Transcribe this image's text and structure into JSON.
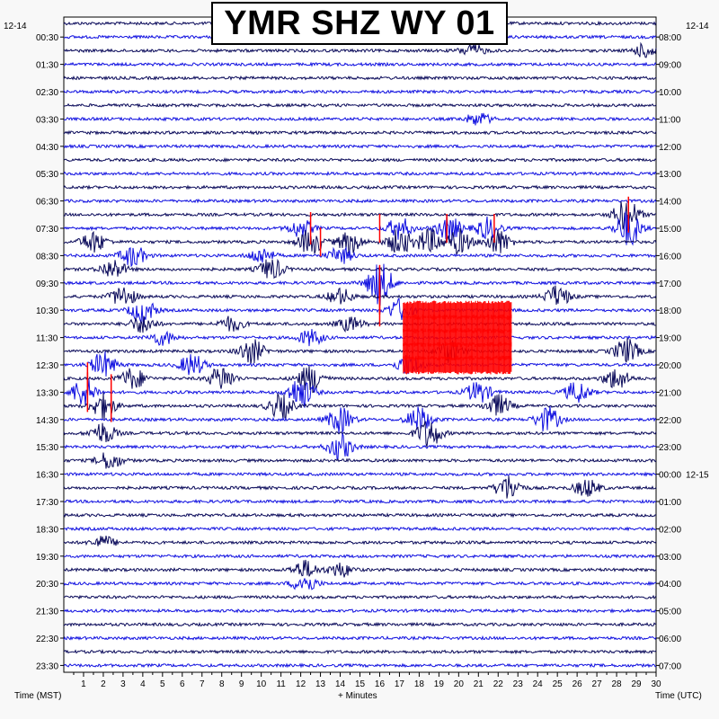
{
  "title": "YMR SHZ WY 01",
  "date_left": "12-14",
  "date_right": "12-14",
  "date_rollover": "12-15",
  "xlabel": "+ Minutes",
  "left_axis_label": "Time (MST)",
  "right_axis_label": "Time (UTC)",
  "colors": {
    "trace_a": "#0a0a5a",
    "trace_b": "#1010e0",
    "clipped": "#ff0000",
    "background": "#f8f8f8"
  },
  "chart_data": {
    "type": "line",
    "description_type": "helicorder",
    "x_ticks": [
      1,
      2,
      3,
      4,
      5,
      6,
      7,
      8,
      9,
      10,
      11,
      12,
      13,
      14,
      15,
      16,
      17,
      18,
      19,
      20,
      21,
      22,
      23,
      24,
      25,
      26,
      27,
      28,
      29,
      30
    ],
    "xlim": [
      0,
      30
    ],
    "traces_per_hour": 2,
    "left_ticks": [
      "00:30",
      "01:30",
      "02:30",
      "03:30",
      "04:30",
      "05:30",
      "06:30",
      "07:30",
      "08:30",
      "09:30",
      "10:30",
      "11:30",
      "12:30",
      "13:30",
      "14:30",
      "15:30",
      "16:30",
      "17:30",
      "18:30",
      "19:30",
      "20:30",
      "21:30",
      "22:30",
      "23:30"
    ],
    "right_ticks": [
      "08:00",
      "09:00",
      "10:00",
      "11:00",
      "12:00",
      "13:00",
      "14:00",
      "15:00",
      "16:00",
      "17:00",
      "18:00",
      "19:00",
      "20:00",
      "21:00",
      "22:00",
      "23:00",
      "00:00",
      "01:00",
      "02:00",
      "03:00",
      "04:00",
      "05:00",
      "06:00",
      "07:00"
    ],
    "events": [
      {
        "row": 2,
        "minute": 20.7,
        "amp": 7
      },
      {
        "row": 2,
        "minute": 29.5,
        "amp": 8
      },
      {
        "row": 7,
        "minute": 21,
        "amp": 7
      },
      {
        "row": 14,
        "minute": 28.5,
        "amp": 18
      },
      {
        "row": 15,
        "minute": 12,
        "amp": 10
      },
      {
        "row": 15,
        "minute": 17,
        "amp": 12
      },
      {
        "row": 15,
        "minute": 19.5,
        "amp": 14
      },
      {
        "row": 15,
        "minute": 21.5,
        "amp": 12
      },
      {
        "row": 15,
        "minute": 28.6,
        "amp": 20
      },
      {
        "row": 16,
        "minute": 1.5,
        "amp": 12
      },
      {
        "row": 16,
        "minute": 12.5,
        "amp": 14
      },
      {
        "row": 16,
        "minute": 14.5,
        "amp": 12
      },
      {
        "row": 16,
        "minute": 17,
        "amp": 14
      },
      {
        "row": 16,
        "minute": 18.5,
        "amp": 14
      },
      {
        "row": 16,
        "minute": 20,
        "amp": 14
      },
      {
        "row": 16,
        "minute": 22,
        "amp": 14
      },
      {
        "row": 17,
        "minute": 3.5,
        "amp": 12
      },
      {
        "row": 17,
        "minute": 10,
        "amp": 9
      },
      {
        "row": 17,
        "minute": 14,
        "amp": 9
      },
      {
        "row": 18,
        "minute": 2.5,
        "amp": 11
      },
      {
        "row": 18,
        "minute": 10.5,
        "amp": 12
      },
      {
        "row": 19,
        "minute": 16,
        "amp": 24
      },
      {
        "row": 20,
        "minute": 3,
        "amp": 12
      },
      {
        "row": 20,
        "minute": 14,
        "amp": 9
      },
      {
        "row": 20,
        "minute": 25,
        "amp": 12
      },
      {
        "row": 21,
        "minute": 4,
        "amp": 14
      },
      {
        "row": 21,
        "minute": 17,
        "amp": 12
      },
      {
        "row": 22,
        "minute": 4,
        "amp": 10
      },
      {
        "row": 22,
        "minute": 8.5,
        "amp": 8
      },
      {
        "row": 22,
        "minute": 14.5,
        "amp": 8
      },
      {
        "row": 23,
        "minute": 5,
        "amp": 8
      },
      {
        "row": 23,
        "minute": 12.5,
        "amp": 9
      },
      {
        "row": 24,
        "minute": 9.5,
        "amp": 14
      },
      {
        "row": 24,
        "minute": 19.5,
        "amp": 12
      },
      {
        "row": 24,
        "minute": 28.5,
        "amp": 14
      },
      {
        "row": 25,
        "minute": 2,
        "amp": 14
      },
      {
        "row": 25,
        "minute": 6.5,
        "amp": 12
      },
      {
        "row": 25,
        "minute": 17.5,
        "amp": 12
      },
      {
        "row": 26,
        "minute": 3.5,
        "amp": 12
      },
      {
        "row": 26,
        "minute": 8,
        "amp": 14
      },
      {
        "row": 26,
        "minute": 12.5,
        "amp": 16
      },
      {
        "row": 26,
        "minute": 28,
        "amp": 12
      },
      {
        "row": 27,
        "minute": 1,
        "amp": 16
      },
      {
        "row": 27,
        "minute": 12,
        "amp": 18
      },
      {
        "row": 27,
        "minute": 21,
        "amp": 12
      },
      {
        "row": 27,
        "minute": 26,
        "amp": 12
      },
      {
        "row": 28,
        "minute": 2,
        "amp": 14
      },
      {
        "row": 28,
        "minute": 11,
        "amp": 14
      },
      {
        "row": 28,
        "minute": 22,
        "amp": 12
      },
      {
        "row": 29,
        "minute": 14,
        "amp": 14
      },
      {
        "row": 29,
        "minute": 18,
        "amp": 14
      },
      {
        "row": 29,
        "minute": 24.5,
        "amp": 14
      },
      {
        "row": 30,
        "minute": 2,
        "amp": 12
      },
      {
        "row": 30,
        "minute": 18.5,
        "amp": 16
      },
      {
        "row": 31,
        "minute": 14,
        "amp": 14
      },
      {
        "row": 32,
        "minute": 2.3,
        "amp": 10
      },
      {
        "row": 34,
        "minute": 22.5,
        "amp": 14
      },
      {
        "row": 34,
        "minute": 26.5,
        "amp": 10
      },
      {
        "row": 38,
        "minute": 2,
        "amp": 7
      },
      {
        "row": 40,
        "minute": 12.2,
        "amp": 10
      },
      {
        "row": 40,
        "minute": 14,
        "amp": 8
      },
      {
        "row": 41,
        "minute": 12.2,
        "amp": 10
      }
    ],
    "clipped_block": {
      "rows": [
        21,
        22,
        23,
        24,
        25
      ],
      "minute_start": 17.2,
      "minute_end": 22.7
    },
    "red_spikes": [
      {
        "row": 14,
        "minute": 28.6,
        "amp": 20
      },
      {
        "row": 15,
        "minute": 12.5,
        "amp": 18
      },
      {
        "row": 15,
        "minute": 16,
        "amp": 16
      },
      {
        "row": 15,
        "minute": 19.4,
        "amp": 16
      },
      {
        "row": 15,
        "minute": 21.8,
        "amp": 16
      },
      {
        "row": 16,
        "minute": 13,
        "amp": 16
      },
      {
        "row": 19,
        "minute": 16,
        "amp": 20
      },
      {
        "row": 20,
        "minute": 16,
        "amp": 20
      },
      {
        "row": 21,
        "minute": 16,
        "amp": 18
      },
      {
        "row": 26,
        "minute": 1.2,
        "amp": 18
      },
      {
        "row": 27,
        "minute": 1.2,
        "amp": 22
      },
      {
        "row": 27,
        "minute": 2.4,
        "amp": 20
      },
      {
        "row": 28,
        "minute": 2.4,
        "amp": 18
      }
    ]
  }
}
